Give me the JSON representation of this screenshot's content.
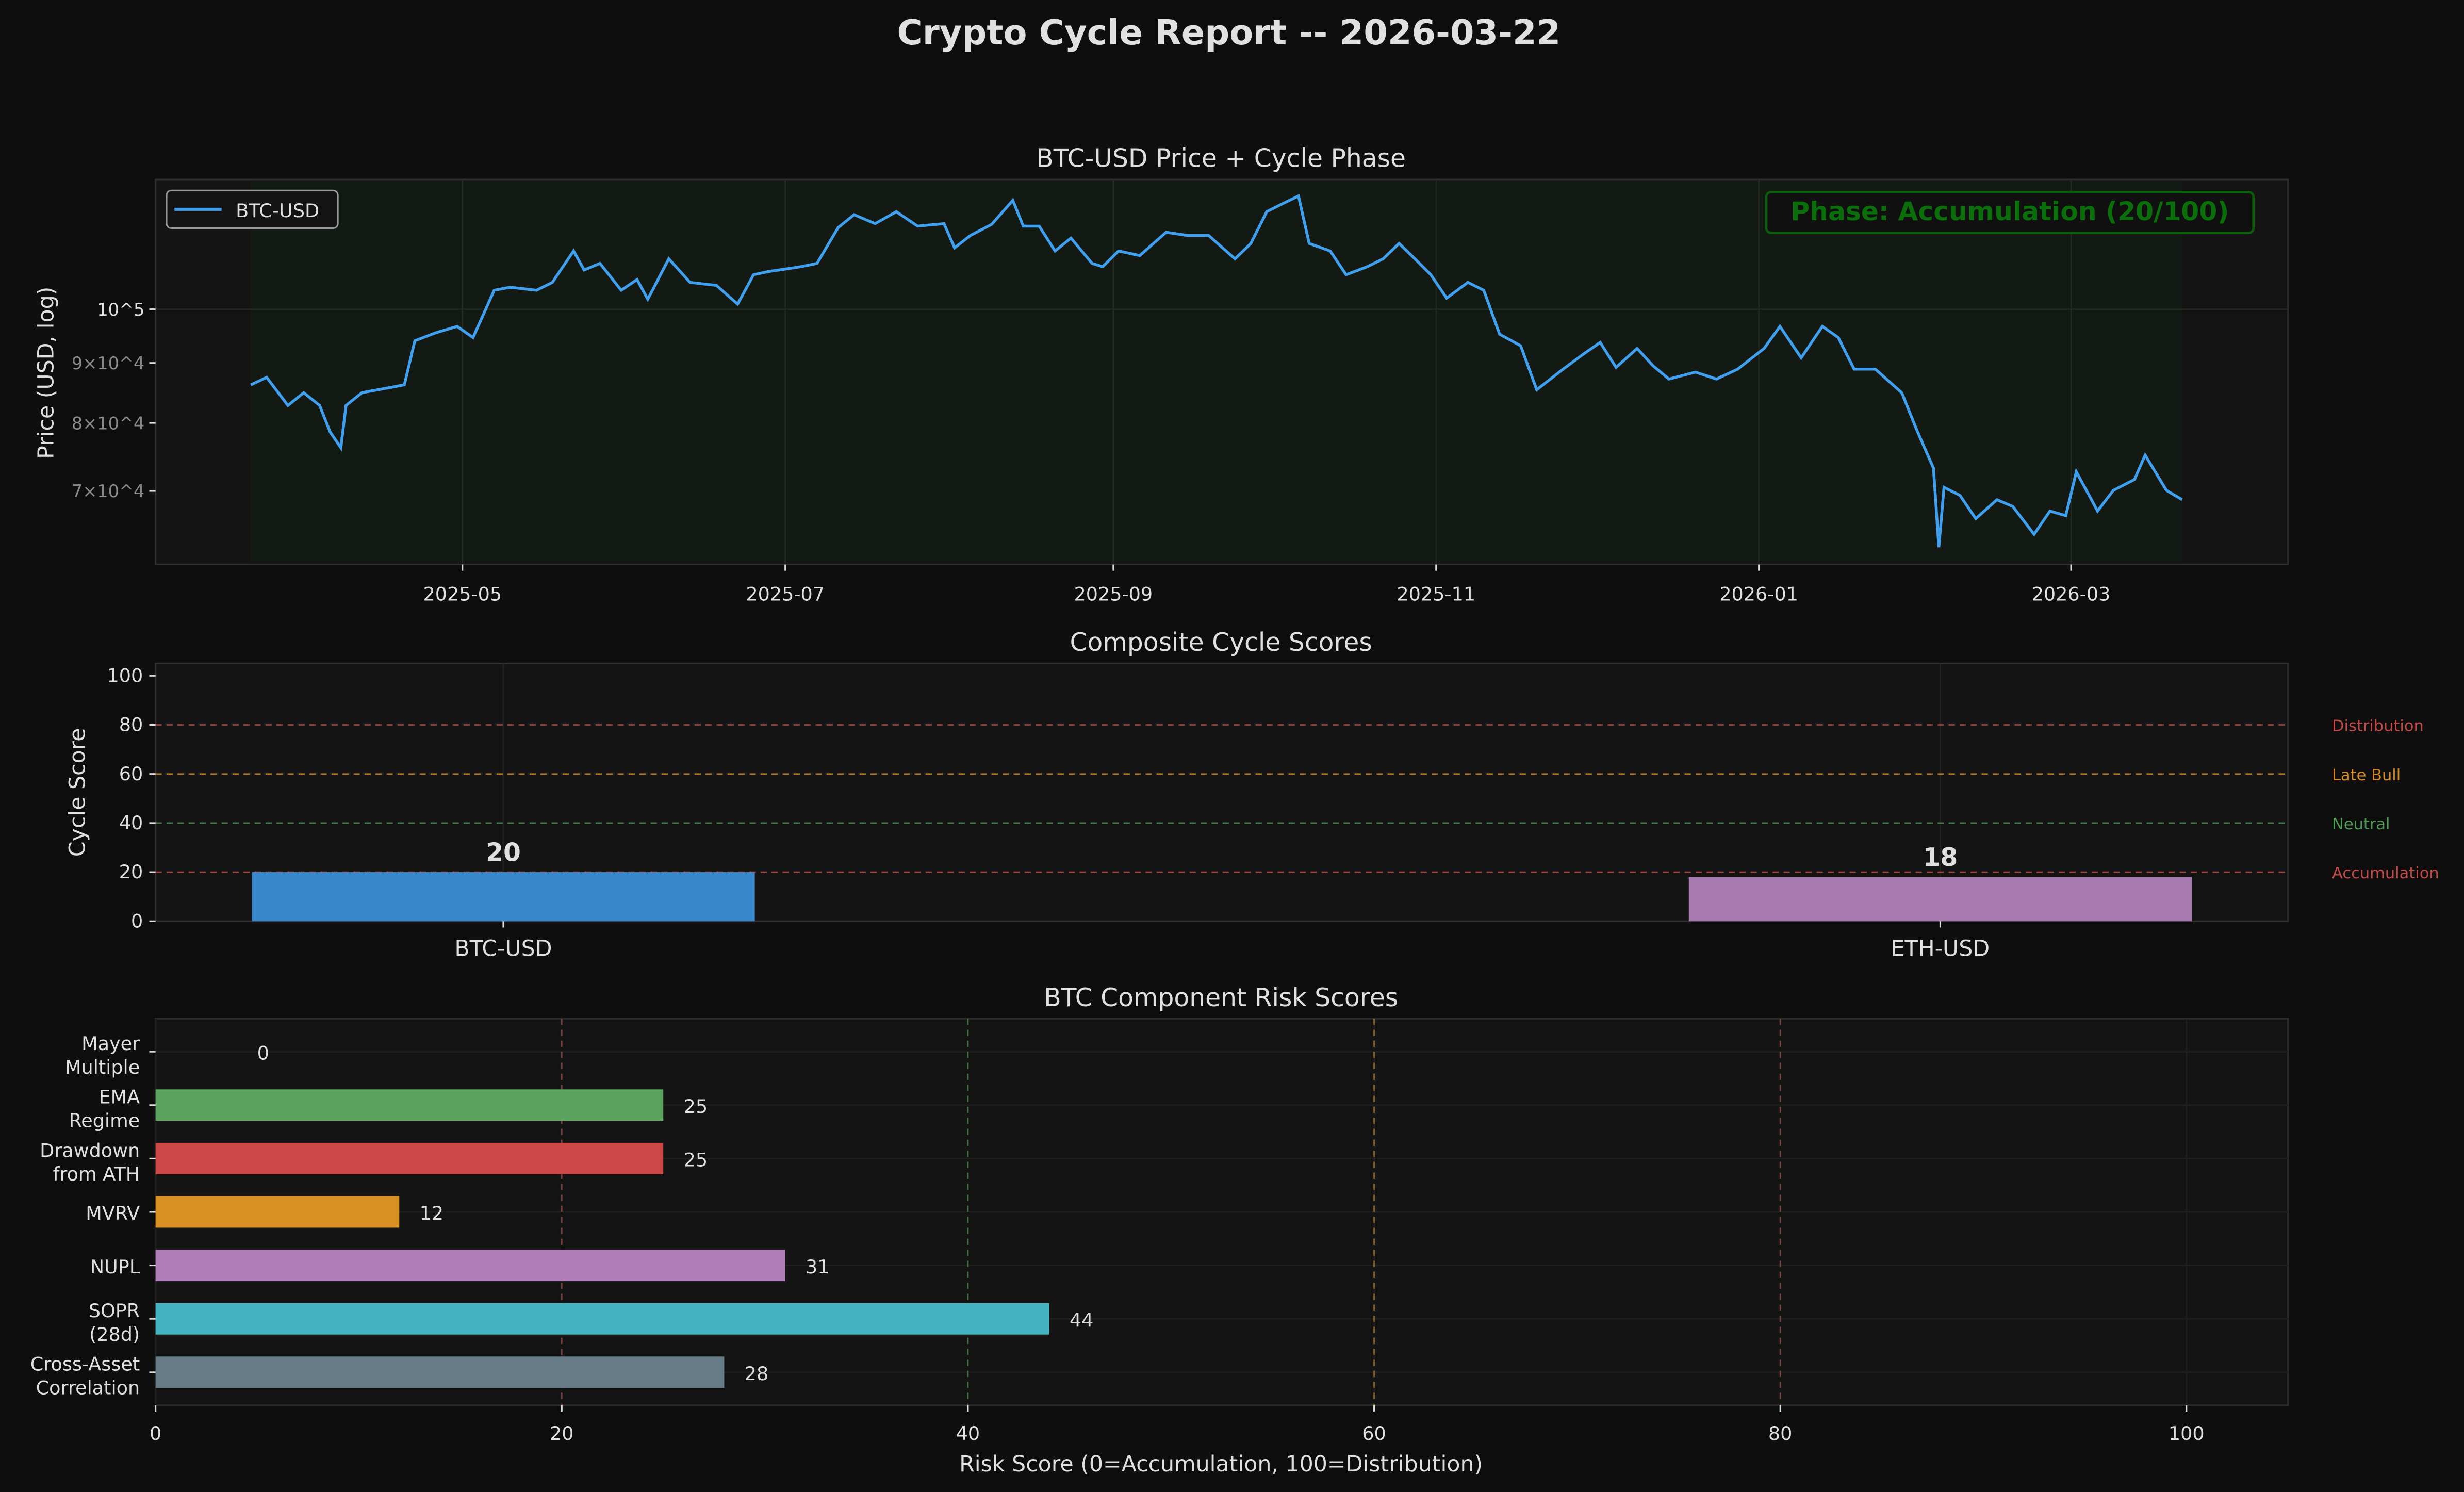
{
  "title": "Crypto Cycle Report -- 2026-03-22",
  "colors": {
    "background": "#0e0e0e",
    "axes": "#141414",
    "phase_shade": "#131a13",
    "line": "#3fa0f0",
    "phase_text": "#0a6e0a"
  },
  "chart_data": [
    {
      "type": "line",
      "title": "BTC-USD Price + Cycle Phase",
      "ylabel": "Price (USD, log)",
      "yscale": "log",
      "ylim": [
        60600,
        129000
      ],
      "xlim": [
        "2025-03-04",
        "2026-04-11"
      ],
      "yticks": [
        {
          "value": 100000,
          "label": "10^5"
        },
        {
          "value": 90000,
          "label": "9×10^4"
        },
        {
          "value": 80000,
          "label": "8×10^4"
        },
        {
          "value": 70000,
          "label": "7×10^4"
        }
      ],
      "xticks": [
        "2025-05",
        "2025-07",
        "2025-09",
        "2025-11",
        "2026-01",
        "2026-03"
      ],
      "legend": {
        "position": "top-left",
        "entries": [
          "BTC-USD"
        ]
      },
      "annotation": "Phase: Accumulation (20/100)",
      "phase_shading": {
        "phase": "Accumulation",
        "from": "2025-03-22",
        "to": "2026-03-22"
      },
      "grid": true,
      "series": [
        {
          "name": "BTC-USD",
          "points": [
            [
              "2025-03-22",
              86200
            ],
            [
              "2025-03-25",
              87500
            ],
            [
              "2025-03-29",
              82800
            ],
            [
              "2025-04-01",
              84900
            ],
            [
              "2025-04-04",
              82800
            ],
            [
              "2025-04-06",
              78600
            ],
            [
              "2025-04-08",
              76200
            ],
            [
              "2025-04-09",
              82800
            ],
            [
              "2025-04-12",
              84900
            ],
            [
              "2025-04-20",
              86200
            ],
            [
              "2025-04-22",
              94000
            ],
            [
              "2025-04-26",
              95500
            ],
            [
              "2025-04-30",
              96700
            ],
            [
              "2025-05-03",
              94600
            ],
            [
              "2025-05-07",
              103800
            ],
            [
              "2025-05-10",
              104400
            ],
            [
              "2025-05-15",
              103800
            ],
            [
              "2025-05-18",
              105400
            ],
            [
              "2025-05-22",
              112100
            ],
            [
              "2025-05-24",
              108000
            ],
            [
              "2025-05-27",
              109400
            ],
            [
              "2025-05-31",
              103800
            ],
            [
              "2025-06-03",
              106000
            ],
            [
              "2025-06-05",
              102000
            ],
            [
              "2025-06-09",
              110400
            ],
            [
              "2025-06-13",
              105400
            ],
            [
              "2025-06-18",
              104800
            ],
            [
              "2025-06-22",
              101000
            ],
            [
              "2025-06-25",
              107000
            ],
            [
              "2025-06-28",
              107700
            ],
            [
              "2025-07-04",
              108700
            ],
            [
              "2025-07-07",
              109400
            ],
            [
              "2025-07-11",
              117400
            ],
            [
              "2025-07-14",
              120400
            ],
            [
              "2025-07-18",
              118300
            ],
            [
              "2025-07-22",
              121100
            ],
            [
              "2025-07-26",
              117700
            ],
            [
              "2025-07-31",
              118300
            ],
            [
              "2025-08-02",
              112800
            ],
            [
              "2025-08-05",
              115600
            ],
            [
              "2025-08-09",
              118100
            ],
            [
              "2025-08-13",
              123800
            ],
            [
              "2025-08-15",
              117700
            ],
            [
              "2025-08-18",
              117700
            ],
            [
              "2025-08-21",
              112100
            ],
            [
              "2025-08-24",
              115000
            ],
            [
              "2025-08-28",
              109400
            ],
            [
              "2025-08-30",
              108700
            ],
            [
              "2025-09-02",
              112100
            ],
            [
              "2025-09-06",
              111100
            ],
            [
              "2025-09-11",
              116300
            ],
            [
              "2025-09-15",
              115600
            ],
            [
              "2025-09-19",
              115600
            ],
            [
              "2025-09-24",
              110400
            ],
            [
              "2025-09-27",
              113800
            ],
            [
              "2025-09-30",
              121100
            ],
            [
              "2025-10-03",
              123000
            ],
            [
              "2025-10-06",
              124900
            ],
            [
              "2025-10-08",
              113800
            ],
            [
              "2025-10-12",
              112100
            ],
            [
              "2025-10-15",
              107000
            ],
            [
              "2025-10-19",
              108700
            ],
            [
              "2025-10-22",
              110400
            ],
            [
              "2025-10-25",
              113800
            ],
            [
              "2025-10-28",
              110400
            ],
            [
              "2025-10-31",
              107000
            ],
            [
              "2025-11-03",
              102200
            ],
            [
              "2025-11-07",
              105400
            ],
            [
              "2025-11-10",
              103800
            ],
            [
              "2025-11-13",
              95200
            ],
            [
              "2025-11-17",
              93100
            ],
            [
              "2025-11-20",
              85400
            ],
            [
              "2025-11-25",
              88900
            ],
            [
              "2025-11-29",
              91700
            ],
            [
              "2025-12-02",
              93700
            ],
            [
              "2025-12-05",
              89200
            ],
            [
              "2025-12-09",
              92600
            ],
            [
              "2025-12-12",
              89500
            ],
            [
              "2025-12-15",
              87200
            ],
            [
              "2025-12-20",
              88400
            ],
            [
              "2025-12-24",
              87200
            ],
            [
              "2025-12-28",
              88900
            ],
            [
              "2026-01-02",
              92600
            ],
            [
              "2026-01-05",
              96700
            ],
            [
              "2026-01-09",
              90900
            ],
            [
              "2026-01-13",
              96700
            ],
            [
              "2026-01-16",
              94600
            ],
            [
              "2026-01-19",
              88900
            ],
            [
              "2026-01-23",
              88900
            ],
            [
              "2026-01-28",
              84900
            ],
            [
              "2026-01-31",
              78600
            ],
            [
              "2026-02-03",
              73200
            ],
            [
              "2026-02-04",
              62700
            ],
            [
              "2026-02-05",
              70500
            ],
            [
              "2026-02-08",
              69400
            ],
            [
              "2026-02-11",
              66300
            ],
            [
              "2026-02-15",
              68800
            ],
            [
              "2026-02-18",
              67900
            ],
            [
              "2026-02-22",
              64300
            ],
            [
              "2026-02-25",
              67300
            ],
            [
              "2026-02-28",
              66700
            ],
            [
              "2026-03-02",
              72700
            ],
            [
              "2026-03-06",
              67300
            ],
            [
              "2026-03-09",
              70100
            ],
            [
              "2026-03-13",
              71600
            ],
            [
              "2026-03-15",
              75100
            ],
            [
              "2026-03-19",
              70100
            ],
            [
              "2026-03-22",
              68800
            ]
          ]
        }
      ]
    },
    {
      "type": "bar",
      "title": "Composite Cycle Scores",
      "ylabel": "Cycle Score",
      "ylim": [
        0,
        105
      ],
      "yticks": [
        0,
        20,
        40,
        60,
        80,
        100
      ],
      "categories": [
        "BTC-USD",
        "ETH-USD"
      ],
      "values": [
        20,
        18
      ],
      "bar_colors": [
        "#3a88cc",
        "#a87bb0"
      ],
      "thresholds": [
        {
          "value": 80,
          "label": "Distribution",
          "color": "#c44a47"
        },
        {
          "value": 60,
          "label": "Late Bull",
          "color": "#d98c24"
        },
        {
          "value": 40,
          "label": "Neutral",
          "color": "#4f9a55"
        },
        {
          "value": 20,
          "label": "Accumulation",
          "color": "#c44a47"
        }
      ]
    },
    {
      "type": "bar",
      "orientation": "horizontal",
      "title": "BTC Component Risk Scores",
      "xlabel": "Risk Score (0=Accumulation, 100=Distribution)",
      "xlim": [
        0,
        105
      ],
      "xticks": [
        0,
        20,
        40,
        60,
        80,
        100
      ],
      "categories": [
        [
          "Mayer",
          "Multiple"
        ],
        [
          "EMA",
          "Regime"
        ],
        [
          "Drawdown",
          "from ATH"
        ],
        [
          "MVRV"
        ],
        [
          "NUPL"
        ],
        [
          "SOPR",
          "(28d)"
        ],
        [
          "Cross-Asset",
          "Correlation"
        ]
      ],
      "values": [
        0,
        25,
        25,
        12,
        31,
        44,
        28
      ],
      "bar_colors": [
        "#5ba35e",
        "#5ba35e",
        "#cc4a47",
        "#d99124",
        "#b07fb9",
        "#44b3c2",
        "#677c86"
      ],
      "reference_lines": [
        {
          "value": 20,
          "color": "#7a4040"
        },
        {
          "value": 40,
          "color": "#3f6e3f"
        },
        {
          "value": 60,
          "color": "#8a6420"
        },
        {
          "value": 80,
          "color": "#7a4040"
        }
      ]
    }
  ]
}
